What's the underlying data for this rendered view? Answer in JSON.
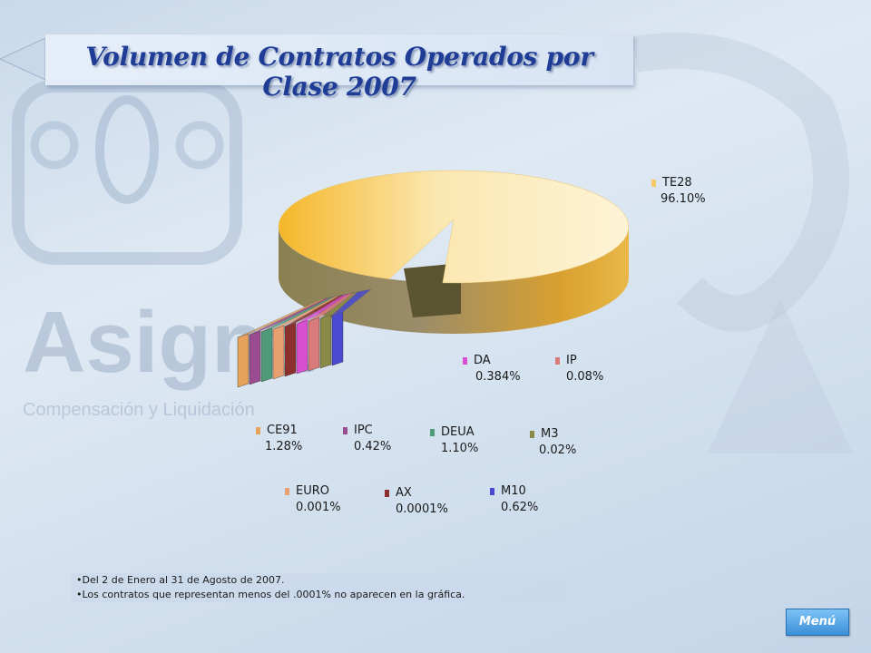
{
  "title": "Volumen de Contratos Operados por Clase 2007",
  "colors": {
    "title": "#1f3d96",
    "menu_button": "#3b8fd8"
  },
  "chart_data": {
    "type": "pie",
    "slices": [
      {
        "name": "TE28",
        "value": 96.1,
        "label": "96.10%",
        "color": "#f6c96a"
      },
      {
        "name": "DA",
        "value": 0.384,
        "label": "0.384%",
        "color": "#d94fd2"
      },
      {
        "name": "IP",
        "value": 0.08,
        "label": "0.08%",
        "color": "#d97b7b"
      },
      {
        "name": "CE91",
        "value": 1.28,
        "label": "1.28%",
        "color": "#e6a25a"
      },
      {
        "name": "IPC",
        "value": 0.42,
        "label": "0.42%",
        "color": "#9b4b8f"
      },
      {
        "name": "DEUA",
        "value": 1.1,
        "label": "1.10%",
        "color": "#4f9a78"
      },
      {
        "name": "M3",
        "value": 0.02,
        "label": "0.02%",
        "color": "#8a8a48"
      },
      {
        "name": "EURO",
        "value": 0.001,
        "label": "0.001%",
        "color": "#e8a070"
      },
      {
        "name": "AX",
        "value": 0.0001,
        "label": "0.0001%",
        "color": "#8b2f2f"
      },
      {
        "name": "M10",
        "value": 0.62,
        "label": "0.62%",
        "color": "#4a4ad0"
      }
    ]
  },
  "notes": [
    "•Del 2 de Enero al 31 de Agosto de 2007.",
    "•Los contratos que representan menos del .0001% no aparecen en la gráfica."
  ],
  "menu_label": "Menú",
  "watermark": {
    "brand": "Asigna",
    "tagline": "Compensación y Liquidación"
  }
}
